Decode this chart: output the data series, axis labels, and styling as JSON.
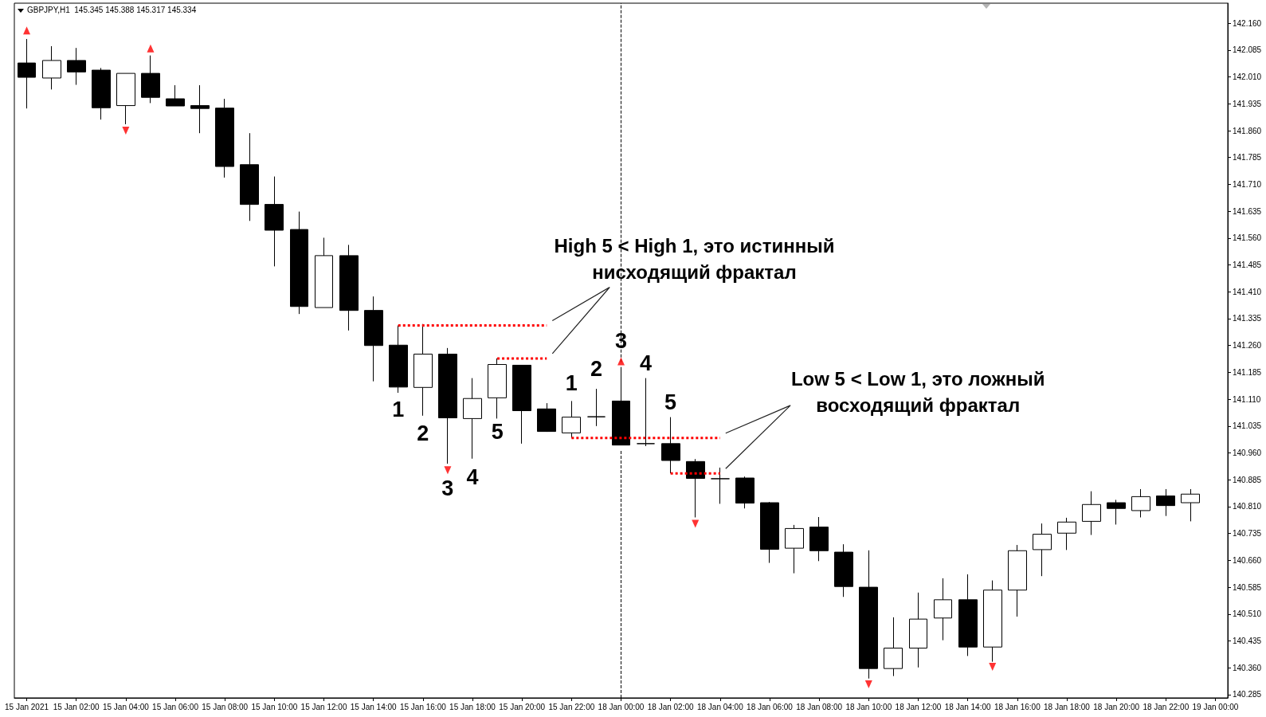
{
  "chart_data": {
    "type": "candlestick",
    "title": "GBPJPY,H1  145.345 145.388 145.317 145.334",
    "categories": [
      "15 Jan 2021",
      null,
      "15 Jan 02:00",
      null,
      "15 Jan 04:00",
      null,
      "15 Jan 06:00",
      null,
      "15 Jan 08:00",
      null,
      "15 Jan 10:00",
      null,
      "15 Jan 12:00",
      null,
      "15 Jan 14:00",
      null,
      "15 Jan 16:00",
      null,
      "15 Jan 18:00",
      null,
      "15 Jan 20:00",
      null,
      "15 Jan 22:00",
      null,
      "18 Jan 00:00",
      null,
      "18 Jan 02:00",
      null,
      "18 Jan 04:00",
      null,
      "18 Jan 06:00",
      null,
      "18 Jan 08:00",
      null,
      "18 Jan 10:00",
      null,
      "18 Jan 12:00",
      null,
      "18 Jan 14:00",
      null,
      "18 Jan 16:00",
      null,
      "18 Jan 18:00",
      null,
      "18 Jan 20:00",
      null,
      "18 Jan 22:00",
      null,
      "19 Jan 00:00"
    ],
    "ohlc": [
      [
        142.049,
        142.116,
        141.922,
        142.009
      ],
      [
        142.007,
        142.096,
        141.975,
        142.056
      ],
      [
        142.056,
        142.091,
        141.988,
        142.024
      ],
      [
        142.029,
        142.035,
        141.891,
        141.924
      ],
      [
        141.93,
        142.02,
        141.878,
        142.02
      ],
      [
        142.02,
        142.07,
        141.937,
        141.953
      ],
      [
        141.949,
        141.987,
        141.929,
        141.929
      ],
      [
        141.93,
        141.987,
        141.853,
        141.922
      ],
      [
        141.923,
        141.949,
        141.729,
        141.76
      ],
      [
        141.765,
        141.853,
        141.608,
        141.654
      ],
      [
        141.654,
        141.732,
        141.481,
        141.582
      ],
      [
        141.584,
        141.634,
        141.348,
        141.369
      ],
      [
        141.366,
        141.561,
        141.366,
        141.511
      ],
      [
        141.511,
        141.541,
        141.302,
        141.358
      ],
      [
        141.358,
        141.397,
        141.16,
        141.26
      ],
      [
        141.261,
        141.316,
        141.128,
        141.144
      ],
      [
        141.143,
        141.32,
        141.064,
        141.236
      ],
      [
        141.236,
        141.253,
        140.93,
        141.058
      ],
      [
        141.056,
        141.169,
        140.944,
        141.112
      ],
      [
        141.114,
        141.224,
        141.056,
        141.207
      ],
      [
        141.205,
        141.205,
        140.986,
        141.078
      ],
      [
        141.083,
        141.099,
        141.019,
        141.02
      ],
      [
        141.016,
        141.105,
        141.002,
        141.06
      ],
      [
        141.061,
        141.139,
        141.035,
        141.061
      ],
      [
        141.105,
        141.2,
        140.982,
        140.982
      ],
      [
        140.986,
        141.169,
        140.979,
        140.986
      ],
      [
        140.986,
        141.06,
        140.903,
        140.939
      ],
      [
        140.936,
        140.943,
        140.78,
        140.889
      ],
      [
        140.888,
        140.919,
        140.818,
        140.888
      ],
      [
        140.89,
        140.894,
        140.805,
        140.82
      ],
      [
        140.821,
        140.823,
        140.653,
        140.691
      ],
      [
        140.694,
        140.759,
        140.624,
        140.749
      ],
      [
        140.753,
        140.781,
        140.658,
        140.687
      ],
      [
        140.683,
        140.705,
        140.558,
        140.587
      ],
      [
        140.585,
        140.688,
        140.33,
        140.358
      ],
      [
        140.358,
        140.501,
        140.337,
        140.415
      ],
      [
        140.415,
        140.57,
        140.361,
        140.496
      ],
      [
        140.499,
        140.61,
        140.437,
        140.55
      ],
      [
        140.55,
        140.621,
        140.393,
        140.418
      ],
      [
        140.418,
        140.604,
        140.377,
        140.577
      ],
      [
        140.577,
        140.703,
        140.503,
        140.687
      ],
      [
        140.69,
        140.763,
        140.616,
        140.733
      ],
      [
        140.736,
        140.779,
        140.689,
        140.767
      ],
      [
        140.769,
        140.853,
        140.731,
        140.816
      ],
      [
        140.821,
        140.829,
        140.76,
        140.805
      ],
      [
        140.799,
        140.859,
        140.78,
        140.838
      ],
      [
        140.84,
        140.859,
        140.784,
        140.813
      ],
      [
        140.821,
        140.859,
        140.769,
        140.845
      ],
      null
    ],
    "color": "#000000",
    "colors": [
      "#000000",
      "#ffffff",
      "#000000",
      "#000000",
      "#ffffff",
      "#000000",
      "#000000",
      "#000000",
      "#000000",
      "#000000",
      "#000000",
      "#000000",
      "#ffffff",
      "#000000",
      "#000000",
      "#000000",
      "#ffffff",
      "#000000",
      "#ffffff",
      "#ffffff",
      "#000000",
      "#000000",
      "#ffffff",
      "#000000",
      "#000000",
      "#000000",
      "#000000",
      "#000000",
      "#000000",
      "#000000",
      "#000000",
      "#ffffff",
      "#000000",
      "#000000",
      "#000000",
      "#ffffff",
      "#ffffff",
      "#ffffff",
      "#000000",
      "#ffffff",
      "#ffffff",
      "#ffffff",
      "#ffffff",
      "#ffffff",
      "#000000",
      "#ffffff",
      "#000000",
      "#ffffff",
      null
    ],
    "series": [
      {
        "type": "line",
        "color": "#ff0000",
        "line_style": "dotted",
        "values": [
          null,
          null,
          null,
          null,
          null,
          null,
          null,
          null,
          null,
          null,
          null,
          null,
          null,
          null,
          null,
          141.316,
          141.316,
          141.316,
          141.316,
          141.316,
          141.316,
          141.316,
          null,
          null,
          null,
          null,
          null,
          null,
          null,
          null,
          null,
          null,
          null,
          null,
          null,
          null,
          null,
          null,
          null,
          null,
          null,
          null,
          null,
          null,
          null,
          null,
          null,
          null,
          null
        ]
      },
      {
        "type": "line",
        "color": "#ff0000",
        "line_style": "dotted",
        "values": [
          null,
          null,
          null,
          null,
          null,
          null,
          null,
          null,
          null,
          null,
          null,
          null,
          null,
          null,
          null,
          null,
          null,
          null,
          null,
          141.224,
          141.224,
          141.224,
          null,
          null,
          null,
          null,
          null,
          null,
          null,
          null,
          null,
          null,
          null,
          null,
          null,
          null,
          null,
          null,
          null,
          null,
          null,
          null,
          null,
          null,
          null,
          null,
          null,
          null,
          null
        ]
      },
      {
        "type": "line",
        "color": "#ff0000",
        "line_style": "dotted",
        "values": [
          null,
          null,
          null,
          null,
          null,
          null,
          null,
          null,
          null,
          null,
          null,
          null,
          null,
          null,
          null,
          null,
          null,
          null,
          null,
          null,
          null,
          null,
          141.002,
          141.002,
          141.002,
          141.002,
          141.002,
          141.002,
          141.002,
          null,
          null,
          null,
          null,
          null,
          null,
          null,
          null,
          null,
          null,
          null,
          null,
          null,
          null,
          null,
          null,
          null,
          null,
          null,
          null
        ]
      },
      {
        "type": "line",
        "color": "#ff0000",
        "line_style": "dotted",
        "values": [
          null,
          null,
          null,
          null,
          null,
          null,
          null,
          null,
          null,
          null,
          null,
          null,
          null,
          null,
          null,
          null,
          null,
          null,
          null,
          null,
          null,
          null,
          null,
          null,
          null,
          null,
          140.903,
          140.903,
          140.903,
          null,
          null,
          null,
          null,
          null,
          null,
          null,
          null,
          null,
          null,
          null,
          null,
          null,
          null,
          null,
          null,
          null,
          null,
          null,
          null
        ]
      },
      {
        "type": "scatter",
        "color": "#ff0000",
        "marker": "triangle",
        "values": [
          142.14,
          null,
          null,
          null,
          null,
          142.09,
          null,
          null,
          null,
          null,
          null,
          null,
          null,
          null,
          null,
          null,
          null,
          null,
          null,
          null,
          null,
          null,
          null,
          null,
          141.216,
          null,
          null,
          null,
          null,
          null,
          null,
          null,
          null,
          null,
          null,
          null,
          null,
          null,
          null,
          null,
          null,
          null,
          null,
          null,
          null,
          null,
          null,
          null,
          null
        ]
      },
      {
        "type": "scatter",
        "color": "#ff0000",
        "marker": "triangle",
        "values": [
          null,
          null,
          null,
          null,
          141.86,
          null,
          null,
          null,
          null,
          null,
          null,
          null,
          null,
          null,
          null,
          null,
          null,
          140.912,
          null,
          null,
          null,
          null,
          null,
          null,
          null,
          null,
          null,
          140.762,
          null,
          null,
          null,
          null,
          null,
          null,
          140.314,
          null,
          null,
          null,
          null,
          140.363,
          null,
          null,
          null,
          null,
          null,
          null,
          null,
          null,
          null
        ]
      }
    ],
    "ylim": [
      140.276,
      142.216
    ],
    "yticks": [
      140.285,
      {
        "value": 140.36,
        "label": "140.360"
      },
      140.435,
      {
        "value": 140.51,
        "label": "140.510"
      },
      140.585,
      {
        "value": 140.66,
        "label": "140.660"
      },
      140.735,
      {
        "value": 140.81,
        "label": "140.810"
      },
      140.885,
      {
        "value": 140.96,
        "label": "140.960"
      },
      141.035,
      {
        "value": 141.11,
        "label": "141.110"
      },
      141.185,
      {
        "value": 141.26,
        "label": "141.260"
      },
      141.335,
      {
        "value": 141.41,
        "label": "141.410"
      },
      141.485,
      {
        "value": 141.56,
        "label": "141.560"
      },
      141.635,
      {
        "value": 141.71,
        "label": "141.710"
      },
      141.785,
      {
        "value": 141.86,
        "label": "141.860"
      },
      141.935,
      {
        "value": 142.01,
        "label": "142.010"
      },
      142.085,
      {
        "value": 142.16,
        "label": "142.160"
      }
    ],
    "ref_lines": [
      {
        "axis": "x",
        "value": "18 Jan 00:00",
        "color": "#000000",
        "line_style": "dashed"
      }
    ],
    "annotations": [
      "High 5 < High 1, это истинный нисходящий фрактал",
      "Low 5 < Low 1, это ложный восходящий фрактал",
      "1",
      "2",
      "3",
      "4",
      "5",
      "1",
      "2",
      "3",
      "4",
      "5"
    ]
  }
}
